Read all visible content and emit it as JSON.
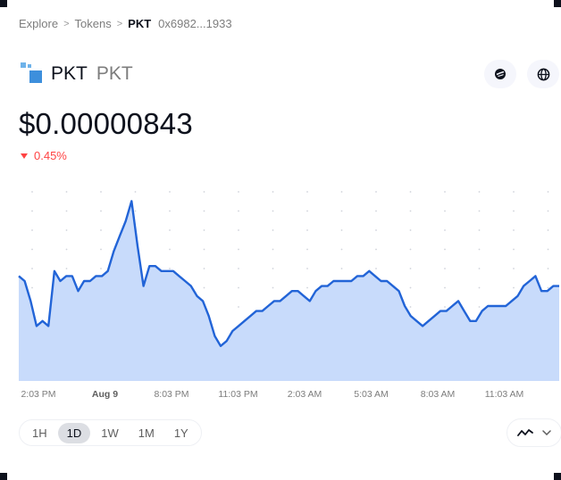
{
  "breadcrumb": {
    "explore": "Explore",
    "tokens": "Tokens",
    "current": "PKT",
    "address": "0x6982...1933"
  },
  "token": {
    "name": "PKT",
    "symbol": "PKT",
    "logo_icon": "pkt-logo"
  },
  "price": "$0.00000843",
  "change": {
    "direction": "down",
    "value": "0.45%",
    "color": "#ff4343"
  },
  "actions": {
    "explorer_icon": "etherscan-icon",
    "website_icon": "globe-icon"
  },
  "time_ranges": {
    "options": [
      "1H",
      "1D",
      "1W",
      "1M",
      "1Y"
    ],
    "selected": "1D"
  },
  "chart_type_icon": "line-chart-icon",
  "chart_data": {
    "type": "area",
    "x_tick_labels": [
      "2:03 PM",
      "Aug 9",
      "8:03 PM",
      "11:03 PM",
      "2:03 AM",
      "5:03 AM",
      "8:03 AM",
      "11:03 AM"
    ],
    "y_values": [
      8.49,
      8.48,
      8.44,
      8.39,
      8.4,
      8.39,
      8.5,
      8.48,
      8.49,
      8.49,
      8.46,
      8.48,
      8.48,
      8.49,
      8.49,
      8.5,
      8.54,
      8.57,
      8.6,
      8.64,
      8.55,
      8.47,
      8.51,
      8.51,
      8.5,
      8.5,
      8.5,
      8.49,
      8.48,
      8.47,
      8.45,
      8.44,
      8.41,
      8.37,
      8.35,
      8.36,
      8.38,
      8.39,
      8.4,
      8.41,
      8.42,
      8.42,
      8.43,
      8.44,
      8.44,
      8.45,
      8.46,
      8.46,
      8.45,
      8.44,
      8.46,
      8.47,
      8.47,
      8.48,
      8.48,
      8.48,
      8.48,
      8.49,
      8.49,
      8.5,
      8.49,
      8.48,
      8.48,
      8.47,
      8.46,
      8.43,
      8.41,
      8.4,
      8.39,
      8.4,
      8.41,
      8.42,
      8.42,
      8.43,
      8.44,
      8.42,
      8.4,
      8.4,
      8.42,
      8.43,
      8.43,
      8.43,
      8.43,
      8.44,
      8.45,
      8.47,
      8.48,
      8.49,
      8.46,
      8.46,
      8.47,
      8.47
    ],
    "y_min": 8.28,
    "y_max": 8.68,
    "color": "#2264d7",
    "fill": "#c8dbfb",
    "grid": "dotted"
  }
}
